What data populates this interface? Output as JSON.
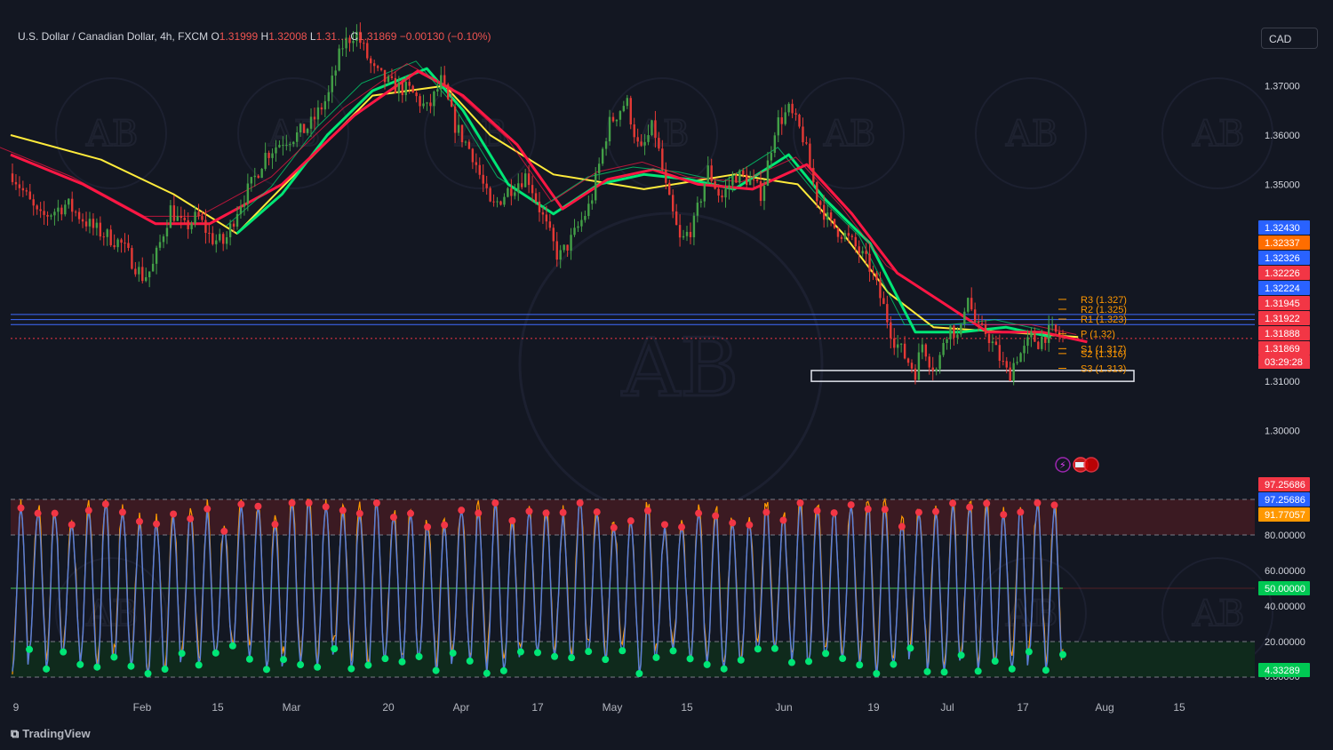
{
  "header": {
    "symbol": "U.S. Dollar / Canadian Dollar, 4h, FXCM",
    "open_label": "O",
    "open": "1.31999",
    "high_label": "H",
    "high": "1.32008",
    "low_label": "L",
    "low": "1.31…",
    "close_label": "C",
    "close": "1.31869",
    "change": "−0.00130 (−0.10%)"
  },
  "currency_button": "CAD",
  "watermark_text": "AB",
  "brand": "TradingView",
  "chart_data": [
    {
      "type": "candlestick",
      "title": "U.S. Dollar / Canadian Dollar, 4h, FXCM",
      "ylim": [
        1.29,
        1.382
      ],
      "y_ticks": [
        1.3,
        1.31,
        1.35,
        1.36,
        1.37
      ],
      "y_tick_labels": [
        "1.30000",
        "1.31000",
        "1.35000",
        "1.36000",
        "1.37000"
      ],
      "x_ticks": [
        "9",
        "Feb",
        "15",
        "Mar",
        "20",
        "Apr",
        "17",
        "May",
        "15",
        "Jun",
        "19",
        "Jul",
        "17",
        "Aug",
        "15"
      ],
      "price_path": [
        [
          0,
          1.3522
        ],
        [
          0.03,
          1.343
        ],
        [
          0.06,
          1.346
        ],
        [
          0.09,
          1.341
        ],
        [
          0.12,
          1.338
        ],
        [
          0.145,
          1.331
        ],
        [
          0.155,
          1.333
        ],
        [
          0.175,
          1.345
        ],
        [
          0.19,
          1.341
        ],
        [
          0.205,
          1.3435
        ],
        [
          0.22,
          1.339
        ],
        [
          0.235,
          1.338
        ],
        [
          0.25,
          1.3455
        ],
        [
          0.265,
          1.35
        ],
        [
          0.28,
          1.356
        ],
        [
          0.3,
          1.359
        ],
        [
          0.315,
          1.36
        ],
        [
          0.33,
          1.362
        ],
        [
          0.35,
          1.368
        ],
        [
          0.365,
          1.378
        ],
        [
          0.38,
          1.381
        ],
        [
          0.4,
          1.373
        ],
        [
          0.42,
          1.37
        ],
        [
          0.44,
          1.369
        ],
        [
          0.46,
          1.365
        ],
        [
          0.475,
          1.371
        ],
        [
          0.49,
          1.362
        ],
        [
          0.51,
          1.356
        ],
        [
          0.53,
          1.345
        ],
        [
          0.55,
          1.349
        ],
        [
          0.57,
          1.352
        ],
        [
          0.59,
          1.342
        ],
        [
          0.605,
          1.335
        ],
        [
          0.62,
          1.339
        ],
        [
          0.64,
          1.346
        ],
        [
          0.66,
          1.362
        ],
        [
          0.68,
          1.367
        ],
        [
          0.695,
          1.356
        ],
        [
          0.71,
          1.362
        ],
        [
          0.725,
          1.348
        ],
        [
          0.74,
          1.338
        ],
        [
          0.755,
          1.342
        ],
        [
          0.77,
          1.353
        ],
        [
          0.785,
          1.347
        ],
        [
          0.8,
          1.352
        ],
        [
          0.815,
          1.351
        ],
        [
          0.83,
          1.348
        ],
        [
          0.845,
          1.362
        ],
        [
          0.86,
          1.365
        ],
        [
          0.875,
          1.36
        ],
        [
          0.89,
          1.348
        ],
        [
          0.905,
          1.342
        ],
        [
          0.92,
          1.34
        ],
        [
          0.935,
          1.337
        ],
        [
          0.95,
          1.333
        ],
        [
          0.965,
          1.325
        ],
        [
          0.975,
          1.319
        ],
        [
          0.985,
          1.316
        ],
        [
          1,
          1.312
        ]
      ],
      "price_path_2": [
        [
          0,
          1.312
        ],
        [
          0.03,
          1.318
        ],
        [
          0.06,
          1.314
        ],
        [
          0.09,
          1.312
        ],
        [
          0.12,
          1.32
        ],
        [
          0.15,
          1.321
        ],
        [
          0.18,
          1.318
        ],
        [
          0.21,
          1.329
        ],
        [
          0.235,
          1.323
        ],
        [
          0.26,
          1.32
        ],
        [
          0.29,
          1.32
        ],
        [
          0.32,
          1.317
        ],
        [
          0.35,
          1.314
        ],
        [
          0.38,
          1.311
        ],
        [
          0.41,
          1.315
        ],
        [
          0.44,
          1.316
        ],
        [
          0.47,
          1.319
        ],
        [
          0.5,
          1.318
        ],
        [
          0.53,
          1.3196
        ],
        [
          0.56,
          1.32
        ],
        [
          0.6,
          1.3187
        ]
      ],
      "moving_averages": [
        {
          "color": "#ffeb3b",
          "points": [
            [
              0,
              1.36
            ],
            [
              0.1,
              1.355
            ],
            [
              0.18,
              1.348
            ],
            [
              0.25,
              1.34
            ],
            [
              0.33,
              1.355
            ],
            [
              0.4,
              1.368
            ],
            [
              0.48,
              1.37
            ],
            [
              0.53,
              1.36
            ],
            [
              0.6,
              1.352
            ],
            [
              0.7,
              1.349
            ],
            [
              0.8,
              1.352
            ],
            [
              0.87,
              1.35
            ],
            [
              0.92,
              1.34
            ],
            [
              0.97,
              1.328
            ],
            [
              1.02,
              1.321
            ],
            [
              1.1,
              1.32
            ],
            [
              1.18,
              1.319
            ]
          ]
        },
        {
          "color": "#00e676",
          "points": [
            [
              0.25,
              1.34
            ],
            [
              0.3,
              1.348
            ],
            [
              0.35,
              1.36
            ],
            [
              0.4,
              1.369
            ],
            [
              0.46,
              1.3735
            ],
            [
              0.5,
              1.365
            ],
            [
              0.55,
              1.35
            ],
            [
              0.6,
              1.344
            ],
            [
              0.65,
              1.35
            ],
            [
              0.7,
              1.352
            ],
            [
              0.75,
              1.351
            ],
            [
              0.8,
              1.349
            ],
            [
              0.86,
              1.356
            ],
            [
              0.9,
              1.347
            ],
            [
              0.95,
              1.338
            ],
            [
              1.0,
              1.32
            ],
            [
              1.05,
              1.32
            ],
            [
              1.1,
              1.321
            ],
            [
              1.15,
              1.319
            ]
          ]
        },
        {
          "color": "#ff1744",
          "points": [
            [
              0,
              1.356
            ],
            [
              0.08,
              1.35
            ],
            [
              0.16,
              1.342
            ],
            [
              0.22,
              1.342
            ],
            [
              0.3,
              1.35
            ],
            [
              0.38,
              1.364
            ],
            [
              0.45,
              1.373
            ],
            [
              0.5,
              1.368
            ],
            [
              0.56,
              1.358
            ],
            [
              0.61,
              1.345
            ],
            [
              0.66,
              1.351
            ],
            [
              0.71,
              1.353
            ],
            [
              0.76,
              1.35
            ],
            [
              0.82,
              1.349
            ],
            [
              0.88,
              1.354
            ],
            [
              0.93,
              1.344
            ],
            [
              0.98,
              1.332
            ],
            [
              1.03,
              1.326
            ],
            [
              1.08,
              1.32
            ],
            [
              1.14,
              1.32
            ],
            [
              1.19,
              1.318
            ]
          ]
        }
      ]
    },
    {
      "type": "line",
      "title": "",
      "ylim": [
        0,
        100
      ],
      "y_ticks": [
        20,
        40,
        60,
        80
      ],
      "y_tick_labels": [
        "20.00000",
        "40.00000",
        "60.00000",
        "80.00000"
      ],
      "midline": 50,
      "overbought": 80,
      "oversold": 20,
      "waves": 62,
      "series": [
        {
          "color": "#5b7fd6"
        },
        {
          "color": "#ff9800"
        }
      ]
    }
  ],
  "pivots": [
    {
      "label": "R3 (1.327)",
      "value": 1.327
    },
    {
      "label": "R2 (1.325)",
      "value": 1.325
    },
    {
      "label": "R1 (1.323)",
      "value": 1.323
    },
    {
      "label": "P (1.32)",
      "value": 1.32
    },
    {
      "label": "S1 (1.317)",
      "value": 1.317
    },
    {
      "label": "S2 (1.316)",
      "value": 1.316
    },
    {
      "label": "S3 (1.313)",
      "value": 1.313
    }
  ],
  "support_zone": [
    1.31,
    1.3122
  ],
  "h_lines": [
    1.32224,
    1.32326,
    1.3243
  ],
  "price_tags": [
    {
      "value": "1.32430",
      "color": "#2962ff"
    },
    {
      "value": "1.32337",
      "color": "#ff6d00"
    },
    {
      "value": "1.32326",
      "color": "#2962ff"
    },
    {
      "value": "1.32226",
      "color": "#f23645"
    },
    {
      "value": "1.32224",
      "color": "#2962ff"
    },
    {
      "value": "1.31945",
      "color": "#f23645"
    },
    {
      "value": "1.31922",
      "color": "#f23645"
    },
    {
      "value": "1.31888",
      "color": "#f23645"
    },
    {
      "value": "1.31869",
      "color": "#f23645"
    }
  ],
  "countdown": "03:29:28",
  "osc_tags": [
    {
      "value": "97.25686",
      "color": "#f23645"
    },
    {
      "value": "97.25686",
      "color": "#2962ff"
    },
    {
      "value": "91.77057",
      "color": "#ff9800"
    },
    {
      "value": "50.00000",
      "color": "#00c853"
    },
    {
      "value": "4.33289",
      "color": "#00c853"
    }
  ],
  "osc_bottom_label": "0.00000"
}
